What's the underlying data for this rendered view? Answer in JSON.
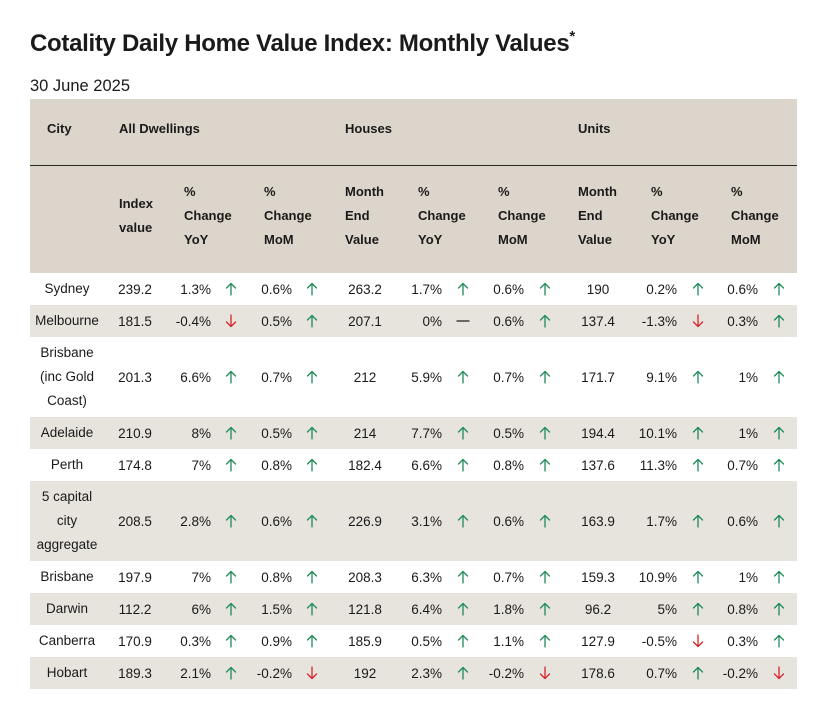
{
  "title": "Cotality Daily Home Value Index: Monthly Values",
  "title_mark": "*",
  "date": "30 June 2025",
  "colors": {
    "up": "#1f8a5a",
    "down": "#d6262c",
    "flat": "#333333",
    "header_bg": "#dcd5cb",
    "row_shade": "#e7e3dd"
  },
  "header": {
    "city": "City",
    "groups": [
      "All Dwellings",
      "Houses",
      "Units"
    ],
    "columns": [
      [
        "Index",
        "value"
      ],
      [
        "%",
        "Change",
        "YoY"
      ],
      [
        "%",
        "Change",
        "MoM"
      ],
      [
        "Month",
        "End",
        "Value"
      ],
      [
        "%",
        "Change",
        "YoY"
      ],
      [
        "%",
        "Change",
        "MoM"
      ],
      [
        "Month",
        "End",
        "Value"
      ],
      [
        "%",
        "Change",
        "YoY"
      ],
      [
        "%",
        "Change",
        "MoM"
      ]
    ]
  },
  "rows": [
    {
      "city": [
        "Sydney"
      ],
      "all_index": "239.2",
      "all_yoy": "1.3%",
      "all_yoy_dir": "up",
      "all_mom": "0.6%",
      "all_mom_dir": "up",
      "house_value": "263.2",
      "house_yoy": "1.7%",
      "house_yoy_dir": "up",
      "house_mom": "0.6%",
      "house_mom_dir": "up",
      "unit_value": "190",
      "unit_yoy": "0.2%",
      "unit_yoy_dir": "up",
      "unit_mom": "0.6%",
      "unit_mom_dir": "up"
    },
    {
      "city": [
        "Melbourne"
      ],
      "all_index": "181.5",
      "all_yoy": "-0.4%",
      "all_yoy_dir": "down",
      "all_mom": "0.5%",
      "all_mom_dir": "up",
      "house_value": "207.1",
      "house_yoy": "0%",
      "house_yoy_dir": "flat",
      "house_mom": "0.6%",
      "house_mom_dir": "up",
      "unit_value": "137.4",
      "unit_yoy": "-1.3%",
      "unit_yoy_dir": "down",
      "unit_mom": "0.3%",
      "unit_mom_dir": "up"
    },
    {
      "city": [
        "Brisbane",
        "(inc Gold",
        "Coast)"
      ],
      "all_index": "201.3",
      "all_yoy": "6.6%",
      "all_yoy_dir": "up",
      "all_mom": "0.7%",
      "all_mom_dir": "up",
      "house_value": "212",
      "house_yoy": "5.9%",
      "house_yoy_dir": "up",
      "house_mom": "0.7%",
      "house_mom_dir": "up",
      "unit_value": "171.7",
      "unit_yoy": "9.1%",
      "unit_yoy_dir": "up",
      "unit_mom": "1%",
      "unit_mom_dir": "up"
    },
    {
      "city": [
        "Adelaide"
      ],
      "all_index": "210.9",
      "all_yoy": "8%",
      "all_yoy_dir": "up",
      "all_mom": "0.5%",
      "all_mom_dir": "up",
      "house_value": "214",
      "house_yoy": "7.7%",
      "house_yoy_dir": "up",
      "house_mom": "0.5%",
      "house_mom_dir": "up",
      "unit_value": "194.4",
      "unit_yoy": "10.1%",
      "unit_yoy_dir": "up",
      "unit_mom": "1%",
      "unit_mom_dir": "up"
    },
    {
      "city": [
        "Perth"
      ],
      "all_index": "174.8",
      "all_yoy": "7%",
      "all_yoy_dir": "up",
      "all_mom": "0.8%",
      "all_mom_dir": "up",
      "house_value": "182.4",
      "house_yoy": "6.6%",
      "house_yoy_dir": "up",
      "house_mom": "0.8%",
      "house_mom_dir": "up",
      "unit_value": "137.6",
      "unit_yoy": "11.3%",
      "unit_yoy_dir": "up",
      "unit_mom": "0.7%",
      "unit_mom_dir": "up"
    },
    {
      "city": [
        "5 capital",
        "city",
        "aggregate"
      ],
      "all_index": "208.5",
      "all_yoy": "2.8%",
      "all_yoy_dir": "up",
      "all_mom": "0.6%",
      "all_mom_dir": "up",
      "house_value": "226.9",
      "house_yoy": "3.1%",
      "house_yoy_dir": "up",
      "house_mom": "0.6%",
      "house_mom_dir": "up",
      "unit_value": "163.9",
      "unit_yoy": "1.7%",
      "unit_yoy_dir": "up",
      "unit_mom": "0.6%",
      "unit_mom_dir": "up"
    },
    {
      "city": [
        "Brisbane"
      ],
      "all_index": "197.9",
      "all_yoy": "7%",
      "all_yoy_dir": "up",
      "all_mom": "0.8%",
      "all_mom_dir": "up",
      "house_value": "208.3",
      "house_yoy": "6.3%",
      "house_yoy_dir": "up",
      "house_mom": "0.7%",
      "house_mom_dir": "up",
      "unit_value": "159.3",
      "unit_yoy": "10.9%",
      "unit_yoy_dir": "up",
      "unit_mom": "1%",
      "unit_mom_dir": "up"
    },
    {
      "city": [
        "Darwin"
      ],
      "all_index": "112.2",
      "all_yoy": "6%",
      "all_yoy_dir": "up",
      "all_mom": "1.5%",
      "all_mom_dir": "up",
      "house_value": "121.8",
      "house_yoy": "6.4%",
      "house_yoy_dir": "up",
      "house_mom": "1.8%",
      "house_mom_dir": "up",
      "unit_value": "96.2",
      "unit_yoy": "5%",
      "unit_yoy_dir": "up",
      "unit_mom": "0.8%",
      "unit_mom_dir": "up"
    },
    {
      "city": [
        "Canberra"
      ],
      "all_index": "170.9",
      "all_yoy": "0.3%",
      "all_yoy_dir": "up",
      "all_mom": "0.9%",
      "all_mom_dir": "up",
      "house_value": "185.9",
      "house_yoy": "0.5%",
      "house_yoy_dir": "up",
      "house_mom": "1.1%",
      "house_mom_dir": "up",
      "unit_value": "127.9",
      "unit_yoy": "-0.5%",
      "unit_yoy_dir": "down",
      "unit_mom": "0.3%",
      "unit_mom_dir": "up"
    },
    {
      "city": [
        "Hobart"
      ],
      "all_index": "189.3",
      "all_yoy": "2.1%",
      "all_yoy_dir": "up",
      "all_mom": "-0.2%",
      "all_mom_dir": "down",
      "house_value": "192",
      "house_yoy": "2.3%",
      "house_yoy_dir": "up",
      "house_mom": "-0.2%",
      "house_mom_dir": "down",
      "unit_value": "178.6",
      "unit_yoy": "0.7%",
      "unit_yoy_dir": "up",
      "unit_mom": "-0.2%",
      "unit_mom_dir": "down"
    }
  ]
}
